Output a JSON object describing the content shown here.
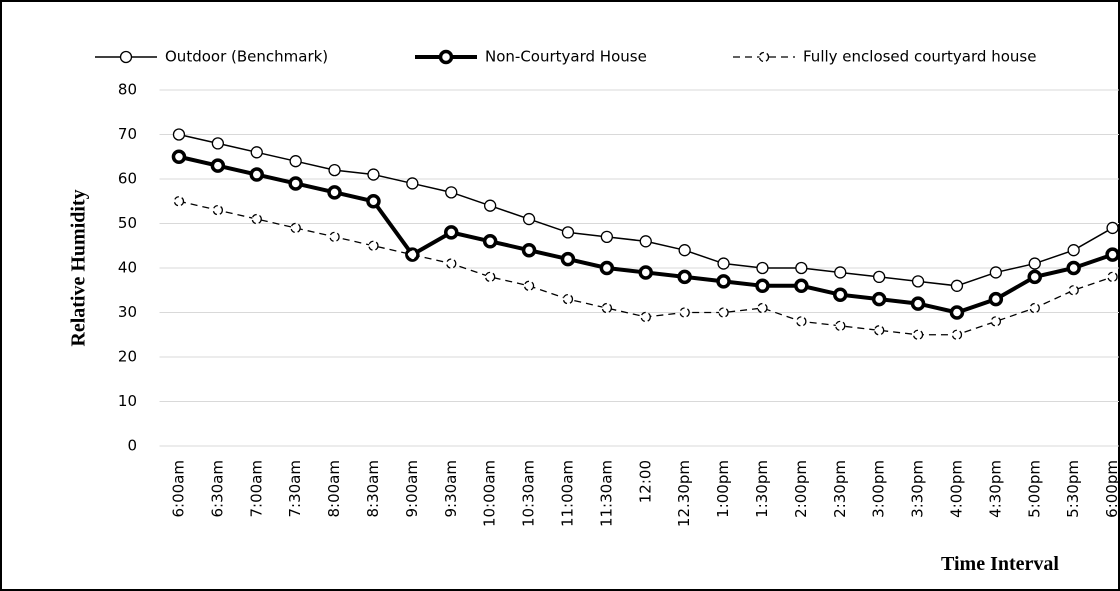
{
  "chart_data": {
    "type": "line",
    "y_label": "Relative Humidity",
    "x_label": "Time Interval",
    "categories": [
      "6:00am",
      "6:30am",
      "7:00am",
      "7:30am",
      "8:00am",
      "8:30am",
      "9:00am",
      "9:30am",
      "10:00am",
      "10:30am",
      "11:00am",
      "11:30am",
      "12:00",
      "12.30pm",
      "1:00pm",
      "1:30pm",
      "2:00pm",
      "2:30pm",
      "3:00pm",
      "3:30pm",
      "4:00pm",
      "4:30pm",
      "5:00pm",
      "5:30pm",
      "6:00pm"
    ],
    "series": [
      {
        "name": "Outdoor (Benchmark)",
        "color": "#000000",
        "line_width": 1.5,
        "line_style": "solid",
        "values": [
          70,
          68,
          66,
          64,
          62,
          61,
          59,
          57,
          54,
          51,
          48,
          47,
          46,
          44,
          41,
          40,
          40,
          39,
          38,
          37,
          36,
          39,
          41,
          44,
          49
        ]
      },
      {
        "name": "Non-Courtyard House",
        "color": "#000000",
        "line_width": 4,
        "line_style": "solid",
        "values": [
          65,
          63,
          61,
          59,
          57,
          55,
          43,
          48,
          46,
          44,
          42,
          40,
          39,
          38,
          37,
          36,
          36,
          34,
          33,
          32,
          30,
          33,
          38,
          40,
          43
        ]
      },
      {
        "name": "Fully enclosed courtyard house",
        "color": "#000000",
        "line_width": 1.3,
        "line_style": "dashed",
        "values": [
          55,
          53,
          51,
          49,
          47,
          45,
          43,
          41,
          38,
          36,
          33,
          31,
          29,
          30,
          30,
          31,
          28,
          27,
          26,
          25,
          25,
          28,
          31,
          35,
          38
        ]
      }
    ],
    "ylim": [
      0,
      80
    ],
    "yticks": [
      0,
      10,
      20,
      30,
      40,
      50,
      60,
      70,
      80
    ],
    "grid": true,
    "legend": "top"
  }
}
